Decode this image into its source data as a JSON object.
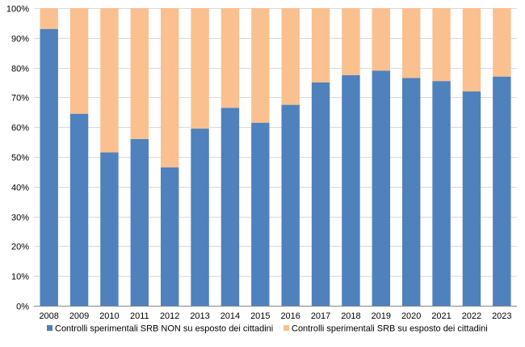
{
  "chart_data": {
    "type": "bar",
    "stacked": true,
    "categories": [
      "2008",
      "2009",
      "2010",
      "2011",
      "2012",
      "2013",
      "2014",
      "2015",
      "2016",
      "2017",
      "2018",
      "2019",
      "2020",
      "2021",
      "2022",
      "2023"
    ],
    "series": [
      {
        "name": "Controlli sperimentali SRB NON su esposto dei cittadini",
        "color": "#4f81bd",
        "values": [
          93,
          64.5,
          51.5,
          56,
          46.5,
          59.5,
          66.5,
          61.5,
          67.5,
          75,
          77.5,
          79,
          76.5,
          75.5,
          72,
          77
        ]
      },
      {
        "name": "Controlli sperimentali SRB su esposto dei cittadini",
        "color": "#fac090",
        "values": [
          7,
          35.5,
          48.5,
          44,
          53.5,
          40.5,
          33.5,
          38.5,
          32.5,
          25,
          22.5,
          21,
          23.5,
          24.5,
          28,
          23
        ]
      }
    ],
    "y_ticks": [
      "0%",
      "10%",
      "20%",
      "30%",
      "40%",
      "50%",
      "60%",
      "70%",
      "80%",
      "90%",
      "100%"
    ],
    "ylim": [
      0,
      100
    ],
    "grid": true,
    "legend_position": "bottom"
  }
}
